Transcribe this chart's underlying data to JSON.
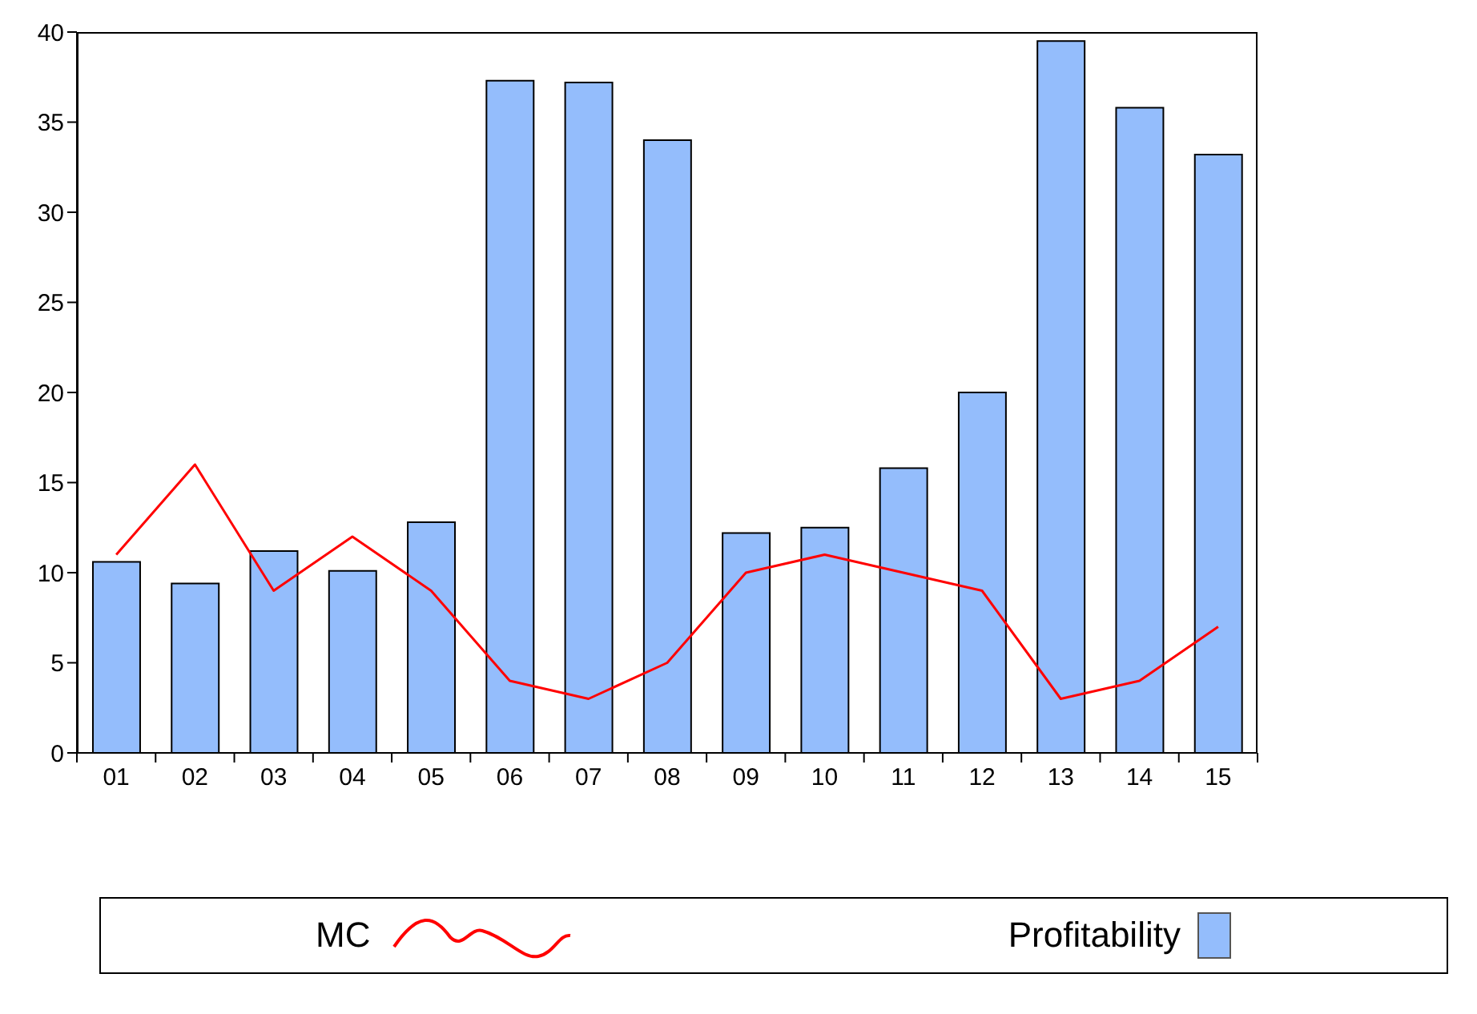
{
  "chart_data": {
    "type": "bar",
    "categories": [
      "01",
      "02",
      "03",
      "04",
      "05",
      "06",
      "07",
      "08",
      "09",
      "10",
      "11",
      "12",
      "13",
      "14",
      "15"
    ],
    "series": [
      {
        "name": "MC",
        "type": "line",
        "color": "#ff0000",
        "values": [
          11,
          16,
          9,
          12,
          9,
          4,
          3,
          5,
          10,
          11,
          10,
          9,
          3,
          4,
          7
        ]
      },
      {
        "name": "Profitability",
        "color": "#94bdfc",
        "values": [
          10.6,
          9.4,
          11.2,
          10.1,
          12.8,
          37.3,
          37.2,
          34.0,
          12.2,
          12.5,
          15.8,
          20.0,
          39.5,
          35.8,
          33.2
        ]
      }
    ],
    "ylim": [
      0,
      40
    ],
    "yticks": [
      0,
      5,
      10,
      15,
      20,
      25,
      30,
      35,
      40
    ],
    "legend": "bottom"
  }
}
